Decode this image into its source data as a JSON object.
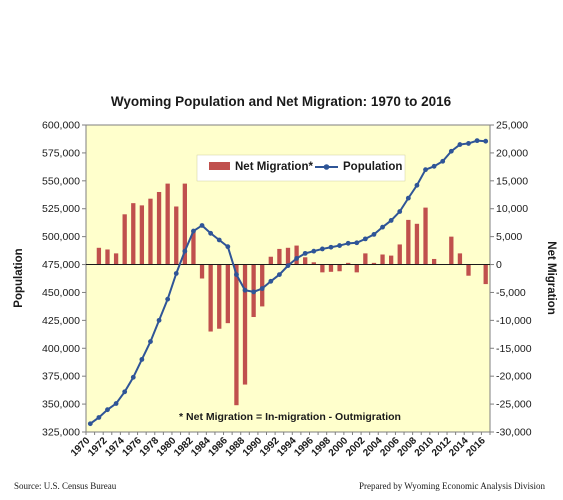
{
  "chart_data": {
    "type": "bar+line",
    "title": "Wyoming Population and Net Migration: 1970 to 2016",
    "ylabel_left": "Population",
    "ylabel_right": "Net Migration",
    "ylim_left": [
      325000,
      600000
    ],
    "ylim_right": [
      -30000,
      25000
    ],
    "yticks_left": [
      "325,000",
      "350,000",
      "375,000",
      "400,000",
      "425,000",
      "450,000",
      "475,000",
      "500,000",
      "525,000",
      "550,000",
      "575,000",
      "600,000"
    ],
    "yticks_right": [
      "-30,000",
      "-25,000",
      "-20,000",
      "-15,000",
      "-10,000",
      "-5,000",
      "0",
      "5,000",
      "10,000",
      "15,000",
      "20,000",
      "25,000"
    ],
    "xtick_labels": [
      "1970",
      "1972",
      "1974",
      "1976",
      "1978",
      "1980",
      "1982",
      "1984",
      "1986",
      "1988",
      "1990",
      "1992",
      "1994",
      "1996",
      "1998",
      "2000",
      "2002",
      "2004",
      "2006",
      "2008",
      "2010",
      "2012",
      "2014",
      "2016"
    ],
    "years": [
      1970,
      1971,
      1972,
      1973,
      1974,
      1975,
      1976,
      1977,
      1978,
      1979,
      1980,
      1981,
      1982,
      1983,
      1984,
      1985,
      1986,
      1987,
      1988,
      1989,
      1990,
      1991,
      1992,
      1993,
      1994,
      1995,
      1996,
      1997,
      1998,
      1999,
      2000,
      2001,
      2002,
      2003,
      2004,
      2005,
      2006,
      2007,
      2008,
      2009,
      2010,
      2011,
      2012,
      2013,
      2014,
      2015,
      2016
    ],
    "series": [
      {
        "name": "Net Migration*",
        "type": "bar",
        "color": "#c0504d",
        "values": [
          0,
          3000,
          2700,
          2000,
          9000,
          11000,
          10600,
          11800,
          13000,
          14500,
          10400,
          14500,
          6000,
          -2500,
          -12000,
          -11500,
          -10500,
          -25200,
          -21500,
          -9400,
          -7500,
          1400,
          2800,
          3000,
          3400,
          1300,
          400,
          -1400,
          -1300,
          -1200,
          300,
          -1400,
          2000,
          300,
          1800,
          1600,
          3600,
          8000,
          7300,
          10200,
          1000,
          0,
          5000,
          2000,
          -2000,
          0,
          -3500
        ]
      },
      {
        "name": "Population",
        "type": "line",
        "color": "#2f5597",
        "values": [
          332400,
          338000,
          345000,
          350500,
          361000,
          374000,
          390000,
          406000,
          425000,
          444000,
          467000,
          487000,
          505000,
          510000,
          503000,
          497000,
          491000,
          466000,
          452000,
          450500,
          453500,
          460000,
          466000,
          474000,
          480500,
          485000,
          487000,
          489000,
          490500,
          492000,
          494000,
          494500,
          498000,
          502000,
          508500,
          514500,
          522500,
          534500,
          546000,
          560000,
          563000,
          567500,
          576500,
          582500,
          583500,
          586000,
          585500
        ]
      }
    ],
    "legend_position": "top-center",
    "grid": false,
    "plot_background": "#ffffcc",
    "annotations": [
      "* Net Migration = In-migration - Outmigration"
    ]
  },
  "footer": {
    "source": "Source: U.S. Census Bureau",
    "prepared_by": "Prepared by Wyoming Economic Analysis Division"
  }
}
